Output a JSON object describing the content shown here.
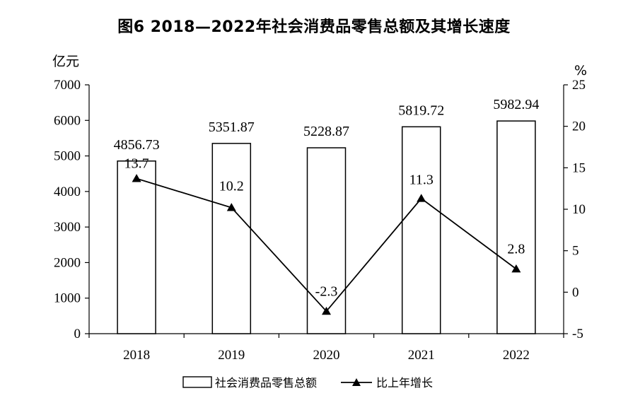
{
  "chart_data": {
    "type": "bar",
    "title": "图6 2018—2022年社会消费品零售总额及其增长速度",
    "categories": [
      "2018",
      "2019",
      "2020",
      "2021",
      "2022"
    ],
    "left_axis": {
      "unit_label": "亿元",
      "ylim": [
        0,
        7000
      ],
      "ticks": [
        "7000",
        "6000",
        "5000",
        "4000",
        "3000",
        "2000",
        "1000",
        "0"
      ]
    },
    "right_axis": {
      "unit_label": "%",
      "ylim": [
        -5,
        25
      ],
      "ticks": [
        "25",
        "20",
        "15",
        "10",
        "5",
        "0",
        "-5"
      ]
    },
    "series": [
      {
        "name": "社会消费品零售总额",
        "type": "bar",
        "axis": "left",
        "values": [
          4856.73,
          5351.87,
          5228.87,
          5819.72,
          5982.94
        ],
        "labels": [
          "4856.73",
          "5351.87",
          "5228.87",
          "5819.72",
          "5982.94"
        ]
      },
      {
        "name": "比上年增长",
        "type": "line",
        "axis": "right",
        "marker": "triangle",
        "values": [
          13.7,
          10.2,
          -2.3,
          11.3,
          2.8
        ],
        "labels": [
          "13.7",
          "10.2",
          "-2.3",
          "11.3",
          "2.8"
        ]
      }
    ],
    "legend": {
      "position": "bottom-center",
      "items": [
        "社会消费品零售总额",
        "比上年增长"
      ]
    },
    "grid": false
  }
}
